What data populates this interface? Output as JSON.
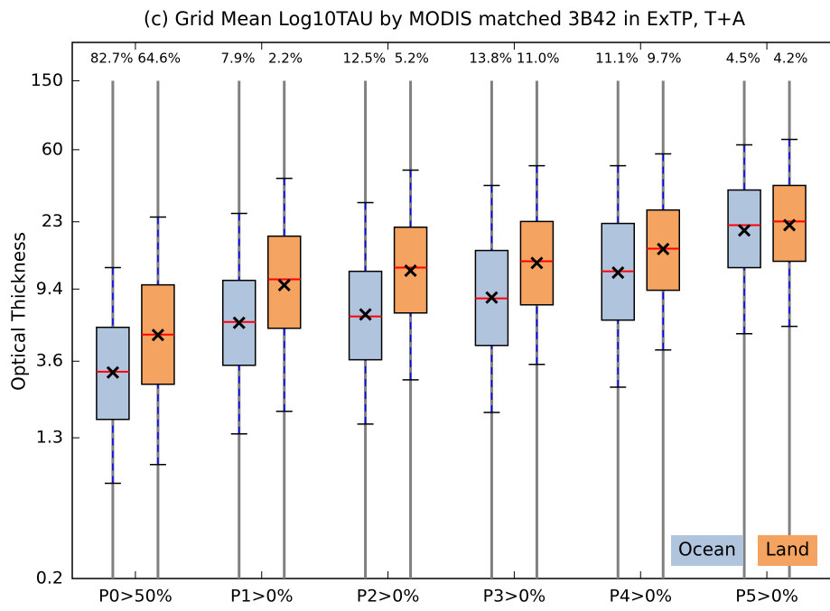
{
  "chart_data": {
    "type": "box",
    "title": "(c) Grid Mean Log10TAU by MODIS matched 3B42 in ExTP, T+A",
    "y_label": "Optical Thickness",
    "y_scale": "log",
    "ylim": [
      0.2,
      250
    ],
    "yticks": [
      0.2,
      1.3,
      3.6,
      9.4,
      23,
      60,
      150
    ],
    "categories": [
      "P0>50%",
      "P1>0%",
      "P2>0%",
      "P3>0%",
      "P4>0%",
      "P5>0%"
    ],
    "legend": "lower right",
    "series": [
      {
        "name": "Ocean",
        "color": "#b0c4de",
        "median_color": "#ff0000",
        "whisker_color": "#0000ff",
        "range_color": "#808080",
        "percent_labels": [
          "82.7%",
          "7.9%",
          "12.5%",
          "13.8%",
          "11.1%",
          "4.5%"
        ],
        "min": [
          0.2,
          0.2,
          0.2,
          0.2,
          0.2,
          0.2
        ],
        "whislo": [
          0.71,
          1.37,
          1.56,
          1.82,
          2.55,
          5.19
        ],
        "q1": [
          1.66,
          3.41,
          3.67,
          4.44,
          6.22,
          12.5
        ],
        "med": [
          3.13,
          6.07,
          6.53,
          8.3,
          11.9,
          22.0
        ],
        "q3": [
          5.65,
          10.55,
          11.9,
          15.7,
          22.5,
          35.1
        ],
        "whishi": [
          12.5,
          25.7,
          29.7,
          37.3,
          48.5,
          64.0
        ],
        "max": [
          150,
          150,
          150,
          150,
          150,
          150
        ],
        "mean": [
          3.1,
          6.0,
          6.7,
          8.4,
          11.7,
          20.5
        ]
      },
      {
        "name": "Land",
        "color": "#f4a460",
        "median_color": "#ff0000",
        "whisker_color": "#0000ff",
        "range_color": "#808080",
        "percent_labels": [
          "64.6%",
          "2.2%",
          "5.2%",
          "11.0%",
          "9.7%",
          "4.2%"
        ],
        "min": [
          0.2,
          0.2,
          0.2,
          0.2,
          0.2,
          0.2
        ],
        "whislo": [
          0.91,
          1.85,
          2.81,
          3.45,
          4.18,
          5.72
        ],
        "q1": [
          2.65,
          5.58,
          6.84,
          7.62,
          9.25,
          13.6
        ],
        "med": [
          5.13,
          10.7,
          12.5,
          13.6,
          16.1,
          23.1
        ],
        "q3": [
          9.94,
          19.0,
          21.4,
          23.1,
          26.9,
          37.3
        ],
        "whishi": [
          24.5,
          41.0,
          45.7,
          48.5,
          56.8,
          68.8
        ],
        "max": [
          150,
          150,
          150,
          150,
          150,
          150
        ],
        "mean": [
          5.1,
          9.9,
          12.0,
          13.3,
          16.0,
          22.0
        ]
      }
    ]
  }
}
